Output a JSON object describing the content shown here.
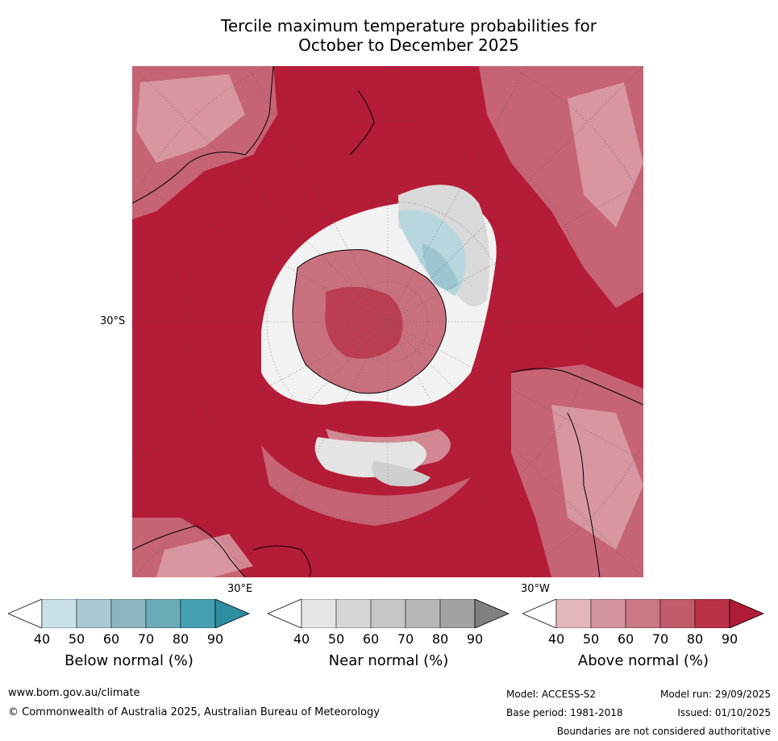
{
  "title_line1": "Tercile maximum temperature probabilities for",
  "title_line2": "October to December 2025",
  "labels": {
    "lat_30s": "30°S",
    "lon_30e": "30°E",
    "lon_30w": "30°W"
  },
  "colorbars": [
    {
      "label": "Below normal (%)",
      "ticks": [
        "40",
        "50",
        "60",
        "70",
        "80",
        "90"
      ],
      "colors": [
        "#ffffff",
        "#c9e1e7",
        "#a8c9d0",
        "#8bb6c1",
        "#6aabb8",
        "#45a0b2",
        "#2e8ea1"
      ]
    },
    {
      "label": "Near normal (%)",
      "ticks": [
        "40",
        "50",
        "60",
        "70",
        "80",
        "90"
      ],
      "colors": [
        "#ffffff",
        "#e6e6e6",
        "#d6d6d6",
        "#c6c6c6",
        "#b6b6b6",
        "#a2a2a2",
        "#808080"
      ]
    },
    {
      "label": "Above normal (%)",
      "ticks": [
        "40",
        "50",
        "60",
        "70",
        "80",
        "90"
      ],
      "colors": [
        "#ffffff",
        "#e3b6bc",
        "#d4959f",
        "#c97884",
        "#c25b6b",
        "#b93248",
        "#b01b37"
      ]
    }
  ],
  "footer": {
    "website": "www.bom.gov.au/climate",
    "copyright": "© Commonwealth of Australia 2025, Australian Bureau of Meteorology",
    "model": "Model: ACCESS-S2",
    "base_period": "Base period: 1981-2018",
    "model_run": "Model run: 29/09/2025",
    "issued": "Issued: 01/10/2025",
    "disclaimer": "Boundaries are not considered authoritative"
  }
}
